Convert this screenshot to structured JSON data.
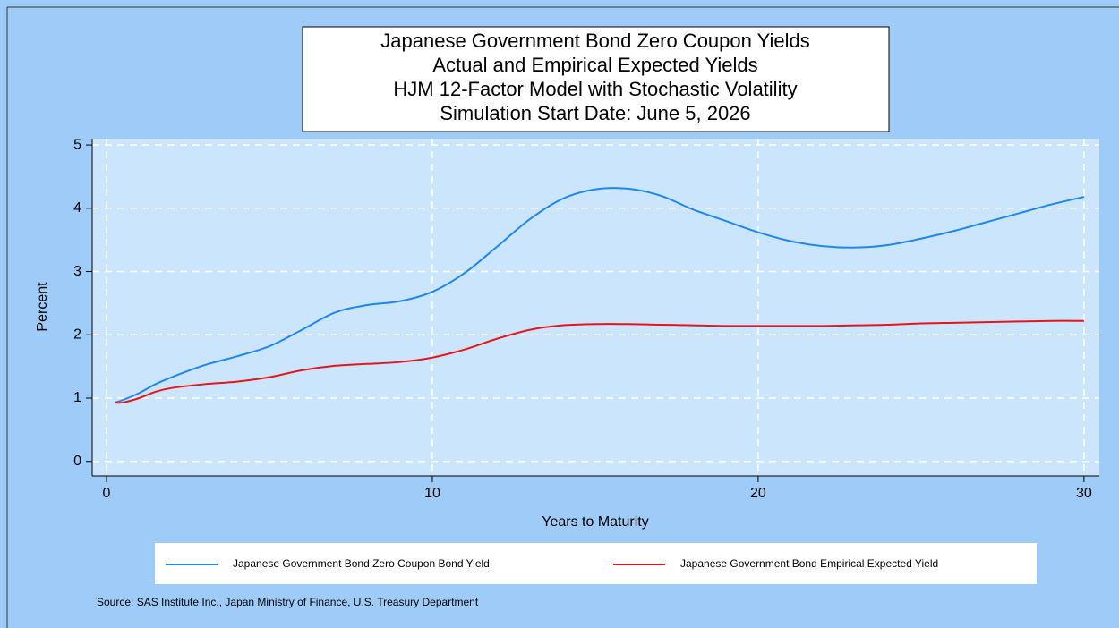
{
  "chart_data": {
    "type": "line",
    "title": [
      "Japanese Government Bond Zero Coupon Yields",
      "Actual and Empirical Expected Yields",
      "HJM 12-Factor Model with Stochastic Volatility",
      "Simulation Start Date: June 5, 2026"
    ],
    "x_label": "Years to Maturity",
    "y_label": "Percent",
    "source": "Source: SAS Institute Inc., Japan Ministry of Finance, U.S. Treasury Department",
    "x": [
      0.25,
      0.5,
      1,
      1.5,
      2,
      3,
      4,
      5,
      6,
      7,
      8,
      9,
      10,
      11,
      12,
      13,
      14,
      15,
      16,
      17,
      18,
      19,
      20,
      21,
      22,
      23,
      24,
      25,
      26,
      27,
      28,
      29,
      30
    ],
    "series": [
      {
        "name": "Japanese Government Bond Zero Coupon Bond Yield",
        "color": "#1e88f0",
        "values": [
          0.93,
          0.97,
          1.08,
          1.22,
          1.33,
          1.52,
          1.66,
          1.82,
          2.08,
          2.35,
          2.47,
          2.53,
          2.68,
          2.98,
          3.4,
          3.83,
          4.15,
          4.3,
          4.31,
          4.2,
          3.98,
          3.8,
          3.62,
          3.48,
          3.4,
          3.38,
          3.42,
          3.52,
          3.64,
          3.78,
          3.92,
          4.06,
          4.18
        ]
      },
      {
        "name": "Japanese Government Bond Empirical Expected Yield",
        "color": "#e8141c",
        "values": [
          0.93,
          0.93,
          1.0,
          1.1,
          1.16,
          1.22,
          1.26,
          1.33,
          1.44,
          1.51,
          1.54,
          1.57,
          1.64,
          1.77,
          1.94,
          2.08,
          2.15,
          2.17,
          2.17,
          2.16,
          2.15,
          2.14,
          2.14,
          2.14,
          2.14,
          2.15,
          2.16,
          2.18,
          2.19,
          2.2,
          2.21,
          2.22,
          2.22
        ]
      }
    ],
    "xlim": [
      -0.44,
      30.47
    ],
    "ylim": [
      -0.23,
      5.1
    ],
    "xticks": [
      0,
      10,
      20,
      30
    ],
    "yticks": [
      0,
      1,
      2,
      3,
      4,
      5
    ],
    "grid": true
  }
}
